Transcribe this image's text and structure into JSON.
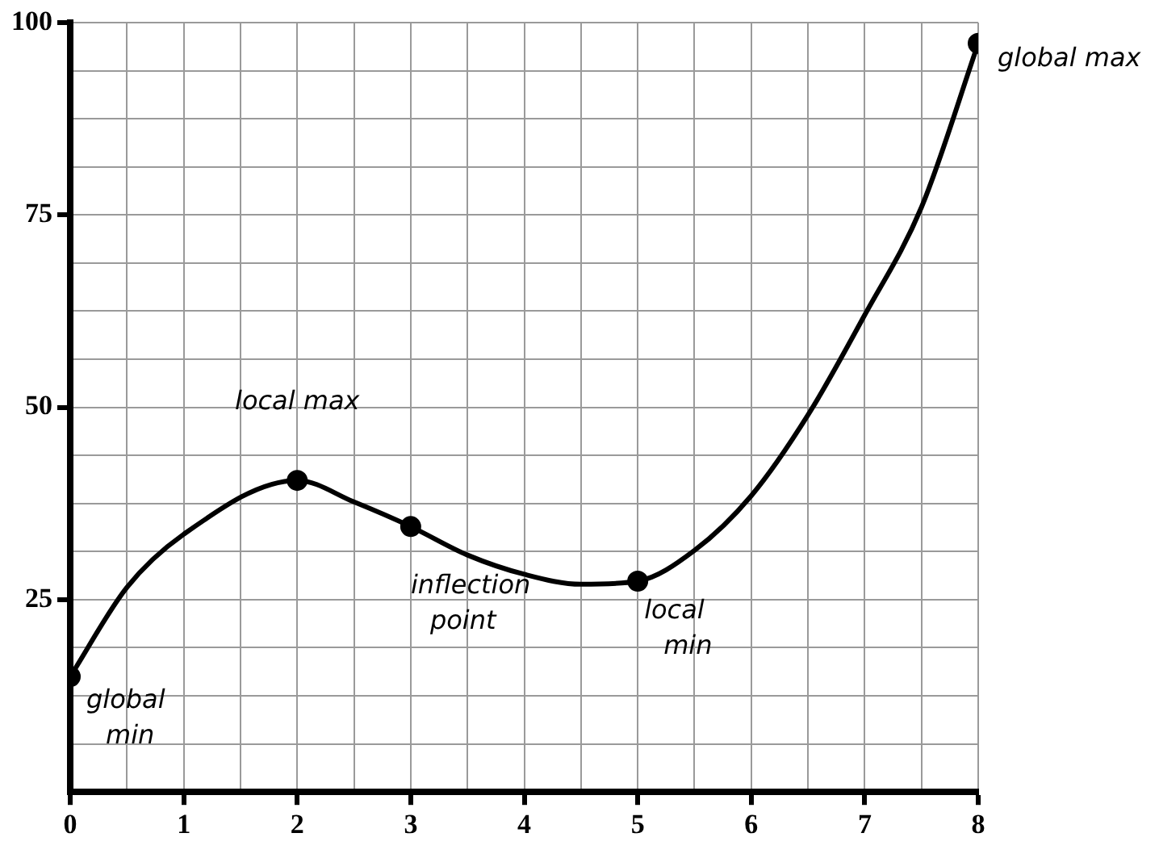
{
  "chart_data": {
    "type": "line",
    "x": [
      0,
      0.5,
      1,
      2,
      2.5,
      3,
      3.5,
      4,
      4.5,
      5,
      5.5,
      6,
      6.5,
      7,
      7.5,
      8
    ],
    "series": [
      {
        "type": "line",
        "color": "#000000",
        "marker": "none",
        "values": [
          15,
          26.6,
          33.5,
          40.5,
          37.7,
          34.5,
          30.8,
          28.3,
          27,
          27.4,
          31.4,
          38.5,
          49,
          62,
          76,
          97.3
        ]
      },
      {
        "type": "scatter",
        "color": "#000000",
        "marker": "circle",
        "x": [
          0,
          2,
          3,
          5,
          8
        ],
        "values": [
          15,
          40.5,
          34.5,
          27.4,
          97.3
        ]
      }
    ],
    "xlim": [
      0,
      8
    ],
    "ylim": [
      0,
      100
    ],
    "xticks": [
      0,
      {
        "value": 0.5,
        "label": null
      },
      1,
      {
        "value": 1.5,
        "label": null
      },
      2,
      {
        "value": 2.5,
        "label": null
      },
      3,
      {
        "value": 3.5,
        "label": null
      },
      4,
      {
        "value": 4.5,
        "label": null
      },
      5,
      {
        "value": 5.5,
        "label": null
      },
      6,
      {
        "value": 6.5,
        "label": null
      },
      7,
      {
        "value": 7.5,
        "label": null
      },
      8
    ],
    "yticks": [
      {
        "value": 0,
        "label": null
      },
      {
        "value": 6.25,
        "label": null
      },
      {
        "value": 12.5,
        "label": null
      },
      {
        "value": 18.75,
        "label": null
      },
      25,
      {
        "value": 31.25,
        "label": null
      },
      {
        "value": 37.5,
        "label": null
      },
      {
        "value": 43.75,
        "label": null
      },
      50,
      {
        "value": 56.25,
        "label": null
      },
      {
        "value": 62.5,
        "label": null
      },
      {
        "value": 68.75,
        "label": null
      },
      75,
      {
        "value": 81.25,
        "label": null
      },
      {
        "value": 87.5,
        "label": null
      },
      {
        "value": 93.75,
        "label": null
      },
      100
    ],
    "grid": true,
    "legend": false,
    "annotations": [
      {
        "text": "global min",
        "x": 0,
        "y": 15
      },
      {
        "text": "local max",
        "x": 2,
        "y": 40.5
      },
      {
        "text": "inflection point",
        "x": 3,
        "y": 34.5
      },
      {
        "text": "local min",
        "x": 5,
        "y": 27.4
      },
      {
        "text": "global max",
        "x": 8,
        "y": 97.3
      }
    ]
  }
}
